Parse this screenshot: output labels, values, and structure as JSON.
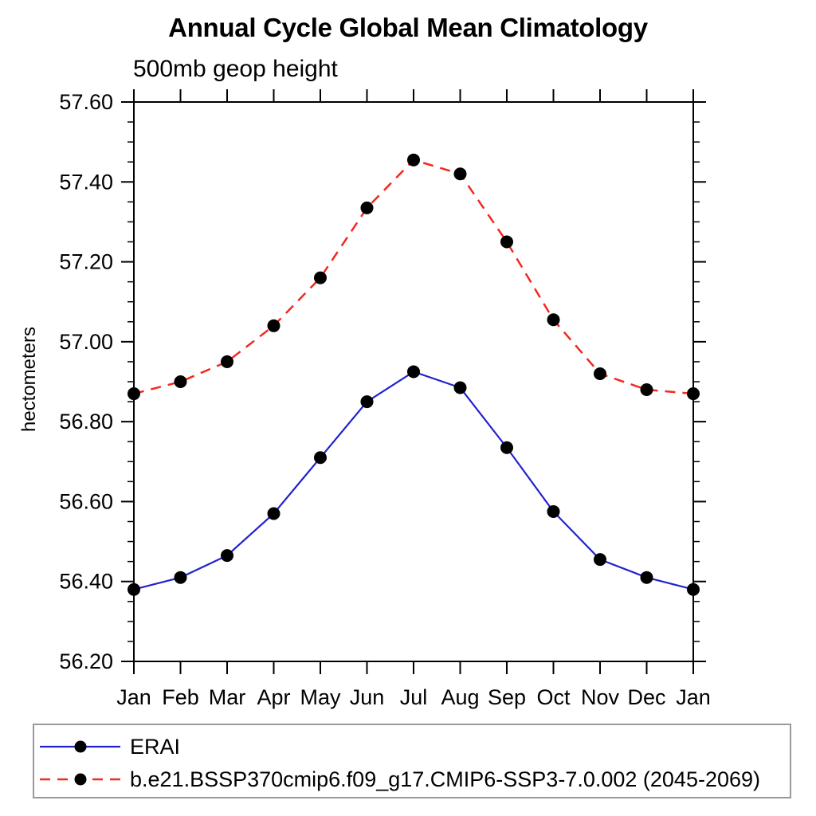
{
  "chart_data": {
    "type": "line",
    "title": "Annual Cycle Global Mean Climatology",
    "subtitle": "500mb geop height",
    "ylabel": "hectometers",
    "categories": [
      "Jan",
      "Feb",
      "Mar",
      "Apr",
      "May",
      "Jun",
      "Jul",
      "Aug",
      "Sep",
      "Oct",
      "Nov",
      "Dec",
      "Jan"
    ],
    "ylim": [
      56.2,
      57.6
    ],
    "ytick_step": 0.2,
    "yminor_step": 0.05,
    "ytick_labels": [
      "56.20",
      "56.40",
      "56.60",
      "56.80",
      "57.00",
      "57.20",
      "57.40",
      "57.60"
    ],
    "grid": false,
    "legend_position": "bottom-left-box",
    "axis_color": "#000000",
    "marker_color": "#000000",
    "series": [
      {
        "name": "ERAI",
        "color": "#2222cd",
        "line_style": "solid",
        "marker": "filled-black-circle",
        "values": [
          56.38,
          56.41,
          56.465,
          56.57,
          56.71,
          56.85,
          56.925,
          56.885,
          56.735,
          56.575,
          56.455,
          56.41,
          56.38
        ]
      },
      {
        "name": "b.e21.BSSP370cmip6.f09_g17.CMIP6-SSP3-7.0.002 (2045-2069)",
        "color": "#f42820",
        "line_style": "dashed",
        "marker": "filled-black-circle",
        "values": [
          56.87,
          56.9,
          56.95,
          57.04,
          57.16,
          57.335,
          57.455,
          57.42,
          57.25,
          57.055,
          56.92,
          56.88,
          56.87
        ]
      }
    ]
  }
}
